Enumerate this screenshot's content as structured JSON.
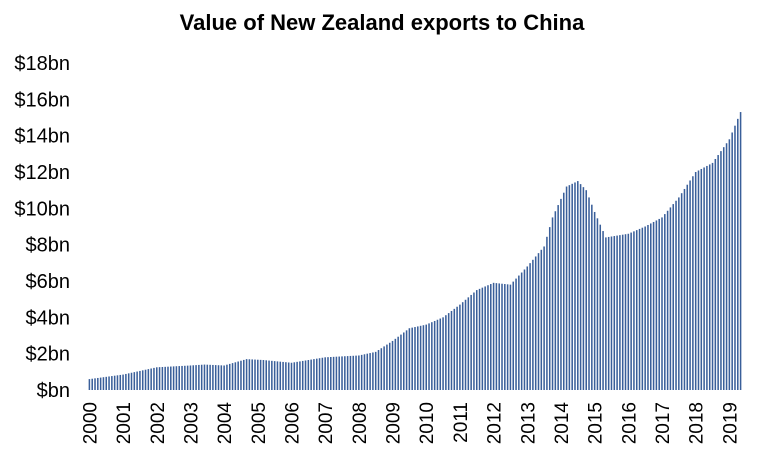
{
  "chart_data": {
    "type": "bar",
    "title": "Value of New Zealand exports to China",
    "xlabel": "",
    "ylabel": "",
    "ylim": [
      0,
      18
    ],
    "y_unit": "NZ$ billions",
    "y_ticks": [
      {
        "value": 0,
        "label": "$bn"
      },
      {
        "value": 2,
        "label": "$2bn"
      },
      {
        "value": 4,
        "label": "$4bn"
      },
      {
        "value": 6,
        "label": "$6bn"
      },
      {
        "value": 8,
        "label": "$8bn"
      },
      {
        "value": 10,
        "label": "$10bn"
      },
      {
        "value": 12,
        "label": "$12bn"
      },
      {
        "value": 14,
        "label": "$14bn"
      },
      {
        "value": 16,
        "label": "$16bn"
      },
      {
        "value": 18,
        "label": "$18bn"
      }
    ],
    "x_tick_labels": [
      "2000",
      "2001",
      "2002",
      "2003",
      "2004",
      "2005",
      "2006",
      "2007",
      "2008",
      "2009",
      "2010",
      "2011",
      "2012",
      "2013",
      "2014",
      "2015",
      "2016",
      "2017",
      "2018",
      "2019"
    ],
    "grid": false,
    "bar_color": "#3a5f9a",
    "series_anchors": [
      {
        "x": "2000-01",
        "y": 0.6
      },
      {
        "x": "2001-01",
        "y": 0.85
      },
      {
        "x": "2002-01",
        "y": 1.25
      },
      {
        "x": "2002-07",
        "y": 1.3
      },
      {
        "x": "2003-01",
        "y": 1.35
      },
      {
        "x": "2003-06",
        "y": 1.4
      },
      {
        "x": "2004-01",
        "y": 1.35
      },
      {
        "x": "2004-09",
        "y": 1.7
      },
      {
        "x": "2005-03",
        "y": 1.65
      },
      {
        "x": "2006-01",
        "y": 1.5
      },
      {
        "x": "2007-01",
        "y": 1.8
      },
      {
        "x": "2008-01",
        "y": 1.9
      },
      {
        "x": "2008-07",
        "y": 2.1
      },
      {
        "x": "2009-01",
        "y": 2.7
      },
      {
        "x": "2009-07",
        "y": 3.4
      },
      {
        "x": "2010-01",
        "y": 3.6
      },
      {
        "x": "2010-07",
        "y": 4.0
      },
      {
        "x": "2011-01",
        "y": 4.7
      },
      {
        "x": "2011-07",
        "y": 5.5
      },
      {
        "x": "2012-01",
        "y": 5.9
      },
      {
        "x": "2012-07",
        "y": 5.8
      },
      {
        "x": "2013-01",
        "y": 6.8
      },
      {
        "x": "2013-07",
        "y": 7.9
      },
      {
        "x": "2013-10",
        "y": 9.5
      },
      {
        "x": "2014-03",
        "y": 11.2
      },
      {
        "x": "2014-07",
        "y": 11.5
      },
      {
        "x": "2014-10",
        "y": 11.0
      },
      {
        "x": "2015-01",
        "y": 9.8
      },
      {
        "x": "2015-05",
        "y": 8.4
      },
      {
        "x": "2016-01",
        "y": 8.6
      },
      {
        "x": "2016-07",
        "y": 9.0
      },
      {
        "x": "2017-01",
        "y": 9.5
      },
      {
        "x": "2017-07",
        "y": 10.6
      },
      {
        "x": "2018-01",
        "y": 12.0
      },
      {
        "x": "2018-07",
        "y": 12.5
      },
      {
        "x": "2019-01",
        "y": 13.8
      },
      {
        "x": "2019-05",
        "y": 15.3
      }
    ]
  }
}
